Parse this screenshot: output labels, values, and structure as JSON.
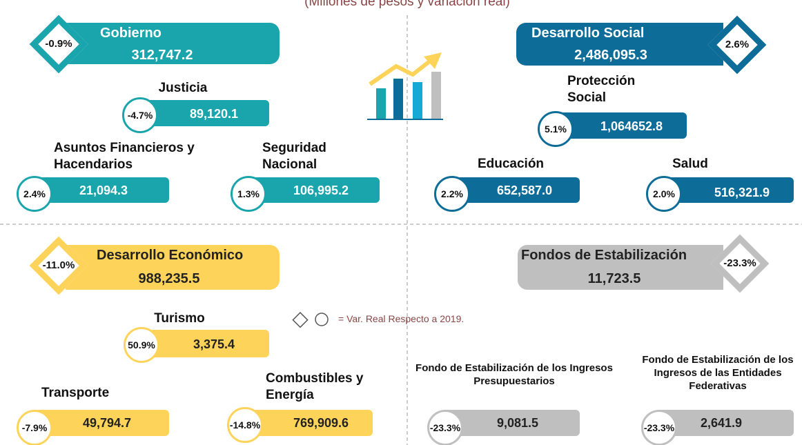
{
  "subtitle": "(Millones de pesos y variación real)",
  "legend": "= Var. Real Respecto a 2019.",
  "groups": [
    {
      "name": "Gobierno",
      "value": "312,747.2",
      "change": "-0.9%",
      "items": [
        {
          "name": "Justicia",
          "value": "89,120.1",
          "change": "-4.7%"
        },
        {
          "name": "Asuntos Financieros y Hacendarios",
          "value": "21,094.3",
          "change": "2.4%"
        },
        {
          "name": "Seguridad Nacional",
          "value": "106,995.2",
          "change": "1.3%"
        }
      ]
    },
    {
      "name": "Desarrollo Social",
      "value": "2,486,095.3",
      "change": "2.6%",
      "items": [
        {
          "name": "Protección Social",
          "value": "1,064652.8",
          "change": "5.1%"
        },
        {
          "name": "Educación",
          "value": "652,587.0",
          "change": "2.2%"
        },
        {
          "name": "Salud",
          "value": "516,321.9",
          "change": "2.0%"
        }
      ]
    },
    {
      "name": "Desarrollo Económico",
      "value": "988,235.5",
      "change": "-11.0%",
      "items": [
        {
          "name": "Turismo",
          "value": "3,375.4",
          "change": "50.9%"
        },
        {
          "name": "Transporte",
          "value": "49,794.7",
          "change": "-7.9%"
        },
        {
          "name": "Combustibles y Energía",
          "value": "769,909.6",
          "change": "-14.8%"
        }
      ]
    },
    {
      "name": "Fondos de Estabilización",
      "value": "11,723.5",
      "change": "-23.3%",
      "items": [
        {
          "name": "Fondo de Estabilización de los Ingresos Presupuestarios",
          "value": "9,081.5",
          "change": "-23.3%"
        },
        {
          "name": "Fondo de Estabilización de los Ingresos de las Entidades Federativas",
          "value": "2,641.9",
          "change": "-23.3%"
        }
      ]
    }
  ]
}
